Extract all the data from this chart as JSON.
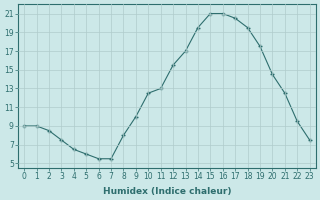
{
  "x": [
    0,
    1,
    2,
    3,
    4,
    5,
    6,
    7,
    8,
    9,
    10,
    11,
    12,
    13,
    14,
    15,
    16,
    17,
    18,
    19,
    20,
    21,
    22,
    23
  ],
  "y": [
    9.0,
    9.0,
    8.5,
    7.5,
    6.5,
    6.0,
    5.5,
    5.5,
    8.0,
    10.0,
    12.5,
    13.0,
    15.5,
    17.0,
    19.5,
    21.0,
    21.0,
    20.5,
    19.5,
    17.5,
    14.5,
    12.5,
    9.5,
    7.5
  ],
  "xlabel": "Humidex (Indice chaleur)",
  "xlim": [
    -0.5,
    23.5
  ],
  "ylim": [
    4.5,
    22
  ],
  "yticks": [
    5,
    7,
    9,
    11,
    13,
    15,
    17,
    19,
    21
  ],
  "xticks": [
    0,
    1,
    2,
    3,
    4,
    5,
    6,
    7,
    8,
    9,
    10,
    11,
    12,
    13,
    14,
    15,
    16,
    17,
    18,
    19,
    20,
    21,
    22,
    23
  ],
  "line_color": "#2e6e6e",
  "marker": "+",
  "bg_color": "#cce8e8",
  "grid_color": "#b0cccc",
  "label_color": "#2e6e6e",
  "tick_fontsize": 5.5,
  "xlabel_fontsize": 6.5
}
